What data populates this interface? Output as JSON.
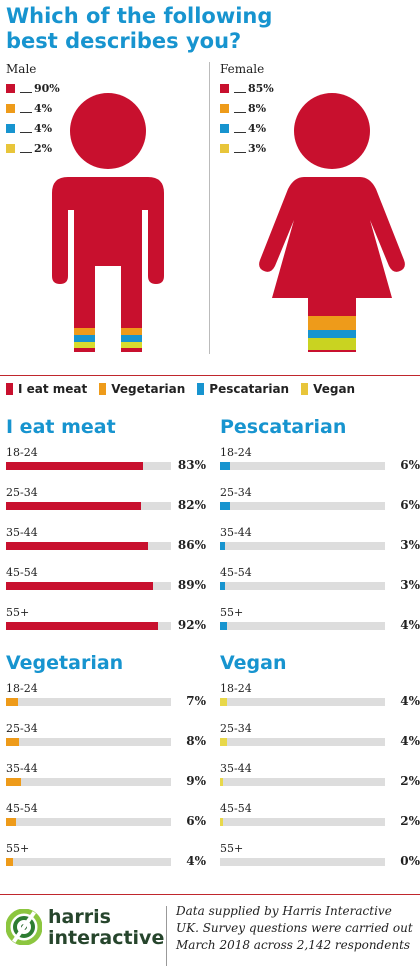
{
  "title": "Which of the following best describes you?",
  "colors": {
    "meat": "#c8102e",
    "vegetarian": "#ee9b1a",
    "pescatarian": "#1794cf",
    "vegan": "#d8dc2e",
    "track": "#dddddd",
    "heading": "#1794cf"
  },
  "legend": [
    "I eat meat",
    "Vegetarian",
    "Pescatarian",
    "Vegan"
  ],
  "figures": {
    "male": {
      "label": "Male",
      "rows": [
        {
          "value": "90%",
          "color": "#c8102e"
        },
        {
          "value": "4%",
          "color": "#ee9b1a"
        },
        {
          "value": "4%",
          "color": "#1794cf"
        },
        {
          "value": "2%",
          "color": "#e8c53a"
        }
      ]
    },
    "female": {
      "label": "Female",
      "rows": [
        {
          "value": "85%",
          "color": "#c8102e"
        },
        {
          "value": "8%",
          "color": "#ee9b1a"
        },
        {
          "value": "4%",
          "color": "#1794cf"
        },
        {
          "value": "3%",
          "color": "#e8c53a"
        }
      ]
    }
  },
  "chart_data": [
    {
      "type": "bar",
      "title": "I eat meat",
      "color": "#c8102e",
      "categories": [
        "18-24",
        "25-34",
        "35-44",
        "45-54",
        "55+"
      ],
      "values": [
        83,
        82,
        86,
        89,
        92
      ],
      "labels": [
        "83%",
        "82%",
        "86%",
        "89%",
        "92%"
      ],
      "ylim": [
        0,
        100
      ]
    },
    {
      "type": "bar",
      "title": "Pescatarian",
      "color": "#1794cf",
      "categories": [
        "18-24",
        "25-34",
        "35-44",
        "45-54",
        "55+"
      ],
      "values": [
        6,
        6,
        3,
        3,
        4
      ],
      "labels": [
        "6%",
        "6%",
        "3%",
        "3%",
        "4%"
      ],
      "ylim": [
        0,
        100
      ]
    },
    {
      "type": "bar",
      "title": "Vegetarian",
      "color": "#ee9b1a",
      "categories": [
        "18-24",
        "25-34",
        "35-44",
        "45-54",
        "55+"
      ],
      "values": [
        7,
        8,
        9,
        6,
        4
      ],
      "labels": [
        "7%",
        "8%",
        "9%",
        "6%",
        "4%"
      ],
      "ylim": [
        0,
        100
      ]
    },
    {
      "type": "bar",
      "title": "Vegan",
      "color": "#e8d84a",
      "categories": [
        "18-24",
        "25-34",
        "35-44",
        "45-54",
        "55+"
      ],
      "values": [
        4,
        4,
        2,
        2,
        0
      ],
      "labels": [
        "4%",
        "4%",
        "2%",
        "2%",
        "0%"
      ],
      "ylim": [
        0,
        100
      ]
    }
  ],
  "footer": {
    "logo_line1": "harris",
    "logo_line2": "interactive",
    "source": "Data supplied by Harris Interactive UK. Survey questions were carried out March 2018 across 2,142 respondents"
  }
}
